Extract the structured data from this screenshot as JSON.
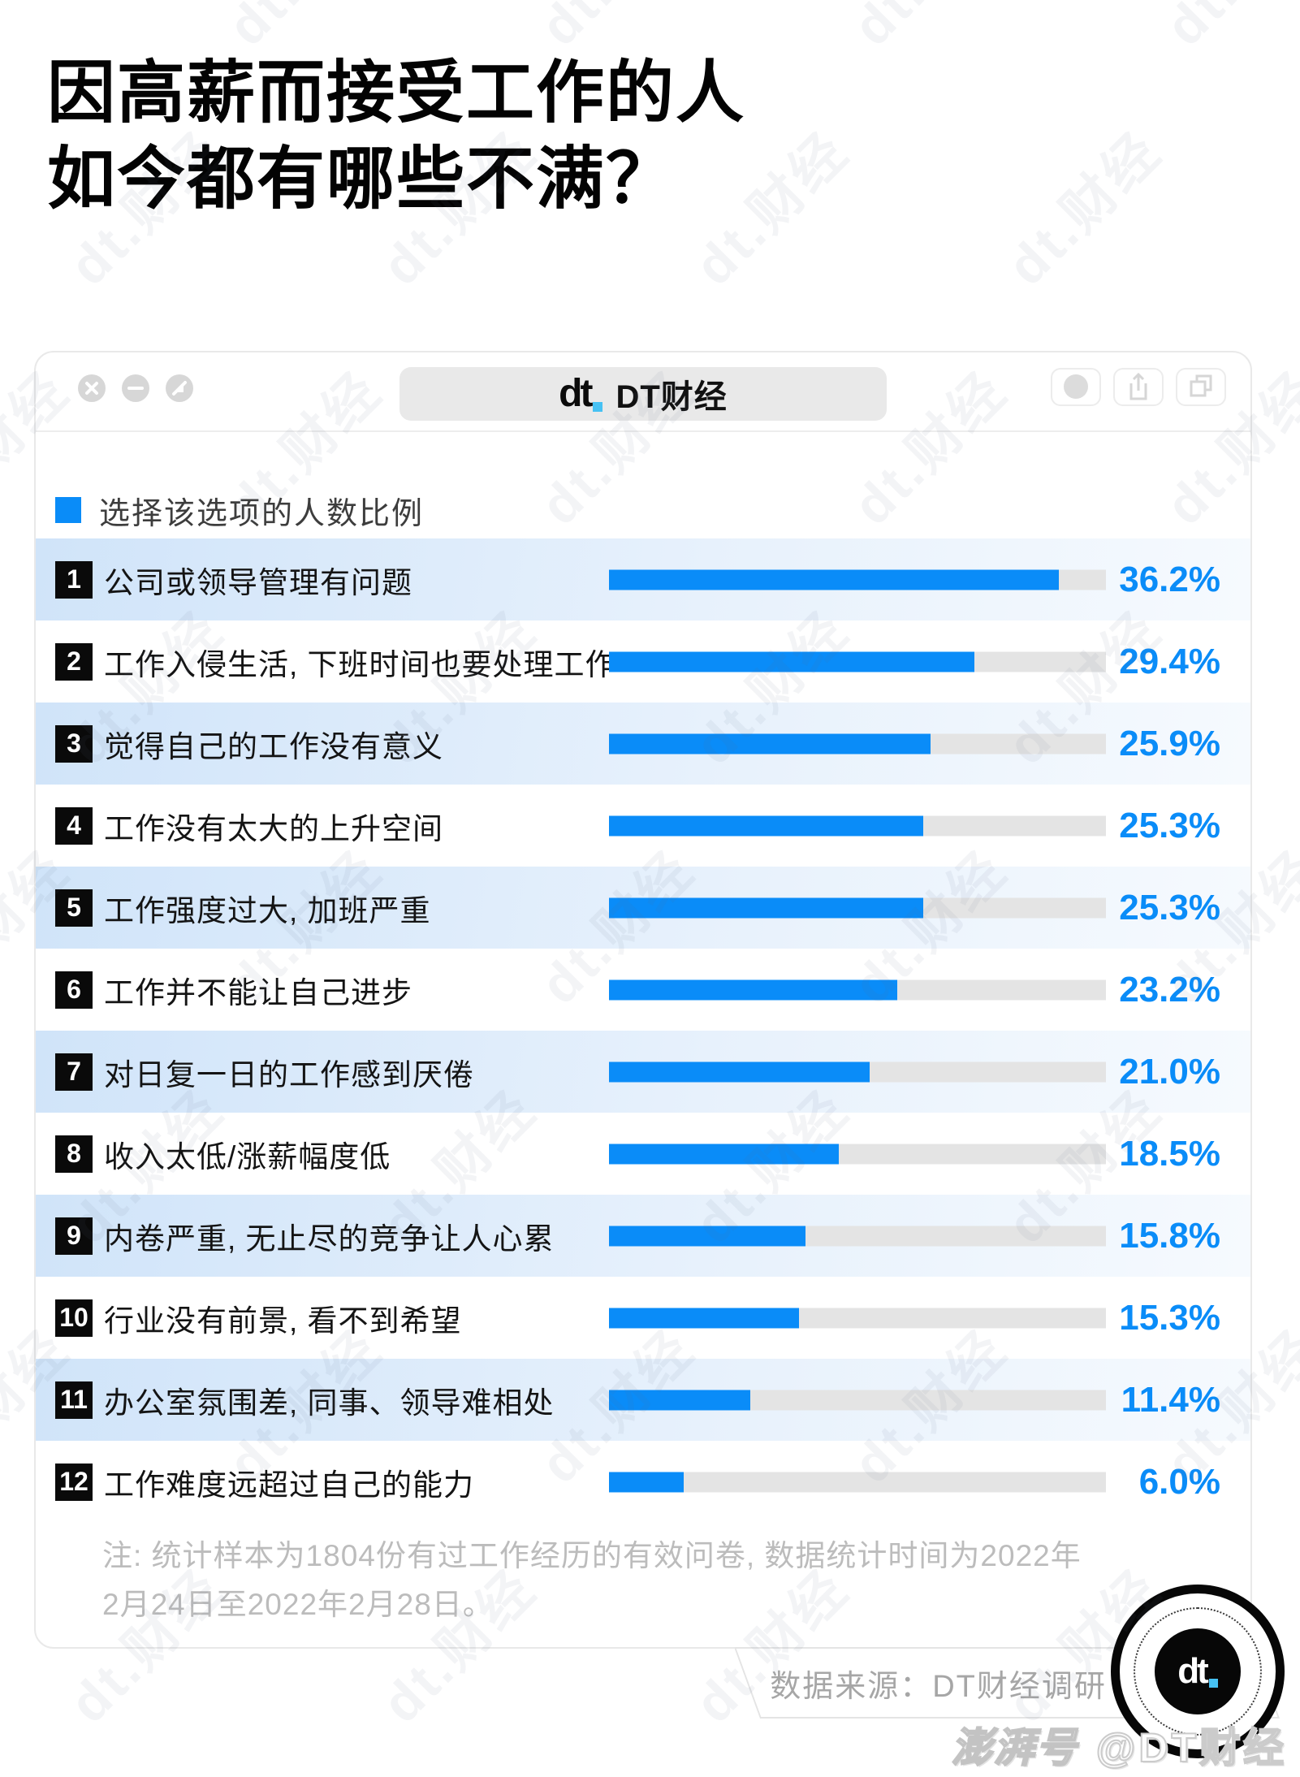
{
  "title": {
    "line1": "因高薪而接受工作的人",
    "line2": "如今都有哪些不满？"
  },
  "browser": {
    "brand": {
      "logo": "dt",
      "name": "DT财经"
    },
    "controls": [
      "close-icon",
      "minimize-icon",
      "resize-icon"
    ],
    "actions": [
      "record-circle-icon",
      "share-icon",
      "copy-icon"
    ]
  },
  "legend": {
    "label": "选择该选项的人数比例",
    "swatch_color": "#0a8cf8"
  },
  "chart_data": {
    "type": "bar",
    "orientation": "horizontal",
    "title": "因高薪而接受工作的人如今都有哪些不满？",
    "legend_label": "选择该选项的人数比例",
    "axis_max_percent": 40,
    "grid": false,
    "rank_labels": [
      "1",
      "2",
      "3",
      "4",
      "5",
      "6",
      "7",
      "8",
      "9",
      "10",
      "11",
      "12"
    ],
    "categories": [
      "公司或领导管理有问题",
      "工作入侵生活, 下班时间也要处理工作",
      "觉得自己的工作没有意义",
      "工作没有太大的上升空间",
      "工作强度过大, 加班严重",
      "工作并不能让自己进步",
      "对日复一日的工作感到厌倦",
      "收入太低/涨薪幅度低",
      "内卷严重, 无止尽的竞争让人心累",
      "行业没有前景, 看不到希望",
      "办公室氛围差, 同事、领导难相处",
      "工作难度远超过自己的能力"
    ],
    "values": [
      36.2,
      29.4,
      25.9,
      25.3,
      25.3,
      23.2,
      21.0,
      18.5,
      15.8,
      15.3,
      11.4,
      6.0
    ],
    "value_labels": [
      "36.2%",
      "29.4%",
      "25.9%",
      "25.3%",
      "25.3%",
      "23.2%",
      "21.0%",
      "18.5%",
      "15.8%",
      "15.3%",
      "11.4%",
      "6.0%"
    ],
    "colors": {
      "bar": "#0a8cf8",
      "track": "#e4e4e4",
      "value_text": "#0a8cf8",
      "row_band_start": "#d0e4f9",
      "row_band_end": "#f6fafe"
    }
  },
  "note": {
    "line1": "注: 统计样本为1804份有过工作经历的有效问卷, 数据统计时间为2022年",
    "line2": "2月24日至2022年2月28日。"
  },
  "source": {
    "label": "数据来源：DT财经调研"
  },
  "badge": {
    "logo": "dt"
  },
  "page_watermark": {
    "tile": "dt.财经",
    "corner_platform": "澎湃号",
    "corner_account": "@DT财经"
  }
}
